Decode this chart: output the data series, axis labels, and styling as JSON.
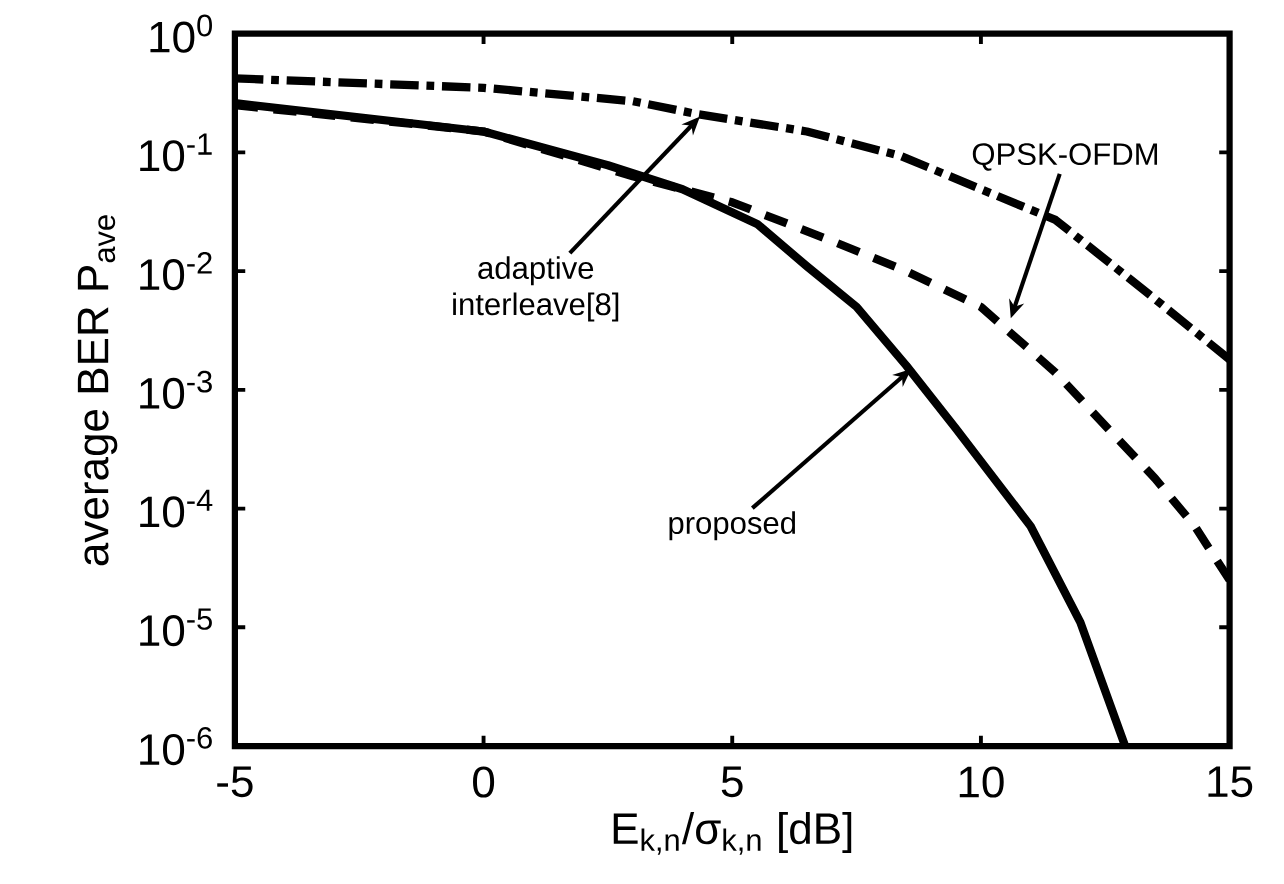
{
  "chart_data": {
    "type": "line",
    "xlabel": "E$_{k,n}$/σ$_{k,n}$ [dB]",
    "ylabel": "average BER P$_{ave}$",
    "log": "y",
    "grid": false,
    "marker": "none",
    "xlim": [
      -5,
      15
    ],
    "xticks": [
      -5,
      0,
      5,
      10,
      15
    ],
    "ylim": [
      1e-06,
      1
    ],
    "yticks": [
      {
        "value": 1e-06,
        "label": "10$^{-6}$"
      },
      {
        "value": 1e-05,
        "label": "10$^{-5}$"
      },
      {
        "value": 0.0001,
        "label": "10$^{-4}$"
      },
      {
        "value": 0.001,
        "label": "10$^{-3}$"
      },
      {
        "value": 0.01,
        "label": "10$^{-2}$"
      },
      {
        "value": 0.1,
        "label": "10$^{-1}$"
      },
      {
        "value": 1,
        "label": "10$^{0}$"
      }
    ],
    "series": [
      {
        "color": "#000000",
        "line_style": "dashdot",
        "x": [
          -5,
          0,
          3,
          4.3,
          6.5,
          8.4,
          10,
          11.5,
          13.4,
          15
        ],
        "values": [
          0.42,
          0.35,
          0.27,
          0.21,
          0.15,
          0.093,
          0.049,
          0.027,
          0.0063,
          0.0018
        ]
      },
      {
        "color": "#000000",
        "line_style": "dashed",
        "x": [
          -5,
          0,
          3,
          5,
          7,
          8.5,
          10,
          11.5,
          12.6,
          13.5,
          14.3,
          15
        ],
        "values": [
          0.25,
          0.15,
          0.063,
          0.038,
          0.018,
          0.01,
          0.005,
          0.0014,
          0.00045,
          0.00018,
          7.1e-05,
          2.5e-05
        ]
      },
      {
        "color": "#000000",
        "line_style": "solid",
        "x": [
          -5,
          0,
          2.5,
          4,
          5.5,
          6.5,
          7.5,
          8.5,
          9.5,
          11,
          12,
          12.9
        ],
        "values": [
          0.26,
          0.15,
          0.078,
          0.049,
          0.025,
          0.011,
          0.005,
          0.0016,
          0.00047,
          7.1e-05,
          1.1e-05,
          1e-06
        ]
      }
    ],
    "annotations": [
      {
        "text": "adaptive interleave[8]",
        "x": 4.35,
        "y": 0.2
      },
      {
        "text": "QPSK-OFDM",
        "x": 10.6,
        "y": 0.004
      },
      {
        "text": "proposed",
        "x": 8.6,
        "y": 0.0015
      }
    ]
  }
}
